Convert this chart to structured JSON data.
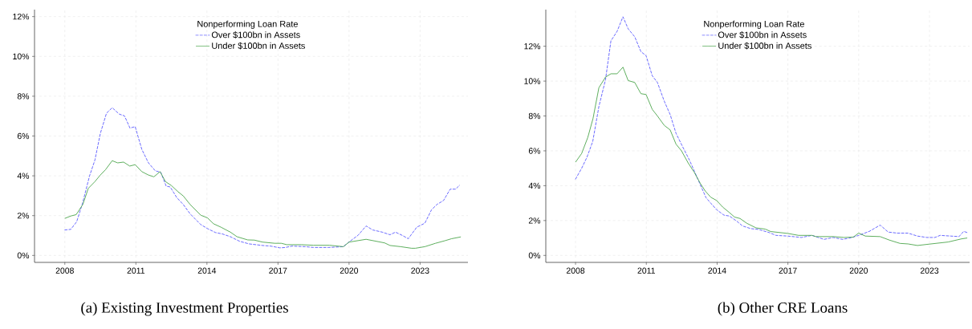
{
  "chart_data": [
    {
      "type": "line",
      "title": "(a) Existing Investment Properties",
      "legend_title": "Nonperforming Loan Rate",
      "legend": "top",
      "grid": true,
      "xlim": [
        2006.72,
        2025.02
      ],
      "ylim": [
        -0.35,
        12.35
      ],
      "xticks": [
        2008,
        2011,
        2014,
        2017,
        2020,
        2023
      ],
      "yticks": [
        {
          "value": 0,
          "label": "0%"
        },
        {
          "value": 2,
          "label": "2%"
        },
        {
          "value": 4,
          "label": "4%"
        },
        {
          "value": 6,
          "label": "6%"
        },
        {
          "value": 8,
          "label": "8%"
        },
        {
          "value": 10,
          "label": "10%"
        },
        {
          "value": 12,
          "label": "12%"
        }
      ],
      "series": [
        {
          "name": "Over $100bn in Assets",
          "color": "#5a5aff",
          "line_style": "dashed",
          "x": [
            2008,
            2008.25,
            2008.5,
            2008.75,
            2009.04,
            2009.27,
            2009.5,
            2009.76,
            2010.0,
            2010.3,
            2010.52,
            2010.75,
            2010.97,
            2011.25,
            2011.53,
            2011.82,
            2012.05,
            2012.28,
            2012.45,
            2012.73,
            2013.0,
            2013.29,
            2013.74,
            2014.02,
            2014.36,
            2014.65,
            2014.99,
            2015.38,
            2015.78,
            2016.35,
            2016.69,
            2017.08,
            2017.31,
            2017.6,
            2018.16,
            2018.5,
            2019.14,
            2019.76,
            2019.99,
            2020.38,
            2020.72,
            2021.0,
            2021.4,
            2021.73,
            2021.96,
            2022.24,
            2022.5,
            2022.86,
            2023.2,
            2023.48,
            2023.71,
            2023.99,
            2024.27,
            2024.5,
            2024.67
          ],
          "values": [
            1.28,
            1.31,
            1.69,
            2.63,
            3.98,
            4.79,
            6.13,
            7.15,
            7.42,
            7.1,
            7.01,
            6.4,
            6.47,
            5.33,
            4.65,
            4.25,
            4.18,
            3.48,
            3.44,
            2.9,
            2.56,
            2.09,
            1.55,
            1.35,
            1.15,
            1.08,
            0.94,
            0.71,
            0.58,
            0.5,
            0.47,
            0.38,
            0.4,
            0.47,
            0.44,
            0.4,
            0.4,
            0.44,
            0.67,
            1.01,
            1.48,
            1.28,
            1.17,
            1.04,
            1.17,
            1.01,
            0.84,
            1.42,
            1.62,
            2.29,
            2.56,
            2.76,
            3.33,
            3.33,
            3.53
          ]
        },
        {
          "name": "Under $100bn in Assets",
          "color": "#4ca64c",
          "line_style": "solid",
          "x": [
            2008,
            2008.25,
            2008.48,
            2008.76,
            2008.99,
            2009.27,
            2009.5,
            2009.72,
            2010.0,
            2010.23,
            2010.48,
            2010.74,
            2010.97,
            2011.25,
            2011.53,
            2011.76,
            2012.02,
            2012.25,
            2012.5,
            2012.78,
            2013.0,
            2013.29,
            2013.74,
            2014.02,
            2014.28,
            2014.59,
            2014.99,
            2015.27,
            2015.72,
            2016.0,
            2016.35,
            2016.86,
            2017.14,
            2017.37,
            2017.99,
            2018.5,
            2019.18,
            2019.76,
            2020.0,
            2020.72,
            2021.5,
            2021.73,
            2022.18,
            2022.64,
            2022.8,
            2023.2,
            2023.65,
            2024.05,
            2024.33,
            2024.72
          ],
          "values": [
            1.86,
            1.98,
            2.05,
            2.56,
            3.37,
            3.71,
            4.04,
            4.31,
            4.76,
            4.65,
            4.69,
            4.49,
            4.56,
            4.21,
            4.04,
            3.95,
            4.21,
            3.71,
            3.51,
            3.2,
            2.99,
            2.56,
            2.02,
            1.89,
            1.59,
            1.42,
            1.17,
            0.94,
            0.78,
            0.77,
            0.67,
            0.61,
            0.61,
            0.54,
            0.54,
            0.51,
            0.51,
            0.44,
            0.67,
            0.81,
            0.63,
            0.5,
            0.44,
            0.36,
            0.36,
            0.44,
            0.61,
            0.74,
            0.84,
            0.93
          ]
        }
      ]
    },
    {
      "type": "line",
      "title": "(b) Other CRE Loans",
      "legend_title": "Nonperforming Loan Rate",
      "legend": "top",
      "grid": true,
      "xlim": [
        2006.74,
        2024.7
      ],
      "ylim": [
        -0.4,
        14.1
      ],
      "xticks": [
        2008,
        2011,
        2014,
        2017,
        2020,
        2023
      ],
      "yticks": [
        {
          "value": 0,
          "label": "0%"
        },
        {
          "value": 2,
          "label": "2%"
        },
        {
          "value": 4,
          "label": "4%"
        },
        {
          "value": 6,
          "label": "6%"
        },
        {
          "value": 8,
          "label": "8%"
        },
        {
          "value": 10,
          "label": "10%"
        },
        {
          "value": 12,
          "label": "12%"
        }
      ],
      "series": [
        {
          "name": "Over $100bn in Assets",
          "color": "#5a5aff",
          "line_style": "dashed",
          "x": [
            2008,
            2008.26,
            2008.48,
            2008.73,
            2008.99,
            2009.27,
            2009.5,
            2009.76,
            2010.01,
            2010.23,
            2010.51,
            2010.77,
            2010.99,
            2011.25,
            2011.47,
            2011.76,
            2012.01,
            2012.26,
            2012.54,
            2012.83,
            2013.03,
            2013.28,
            2013.53,
            2013.73,
            2013.98,
            2014.29,
            2014.52,
            2014.8,
            2015.08,
            2015.42,
            2015.76,
            2016.21,
            2016.49,
            2017.0,
            2017.57,
            2018.02,
            2018.53,
            2018.92,
            2019.32,
            2019.72,
            2020.0,
            2020.45,
            2020.91,
            2021.25,
            2021.64,
            2022.09,
            2022.49,
            2022.89,
            2023.23,
            2023.45,
            2023.91,
            2024.25,
            2024.45,
            2024.6
          ],
          "values": [
            4.38,
            5.0,
            5.62,
            6.54,
            8.54,
            10.08,
            12.31,
            12.85,
            13.69,
            13.0,
            12.54,
            11.69,
            11.46,
            10.31,
            9.92,
            8.85,
            8.08,
            7.0,
            6.23,
            5.46,
            4.85,
            4.08,
            3.31,
            3.0,
            2.62,
            2.31,
            2.26,
            2.0,
            1.69,
            1.54,
            1.49,
            1.31,
            1.15,
            1.11,
            1.03,
            1.15,
            0.92,
            1.03,
            0.92,
            1.03,
            1.15,
            1.38,
            1.74,
            1.34,
            1.28,
            1.28,
            1.11,
            1.03,
            1.03,
            1.15,
            1.11,
            1.08,
            1.38,
            1.31
          ]
        },
        {
          "name": "Under $100bn in Assets",
          "color": "#4ca64c",
          "line_style": "solid",
          "x": [
            2008,
            2008.26,
            2008.52,
            2008.74,
            2008.99,
            2009.27,
            2009.5,
            2009.76,
            2010.01,
            2010.23,
            2010.51,
            2010.77,
            2010.99,
            2011.25,
            2011.47,
            2011.76,
            2012.01,
            2012.26,
            2012.49,
            2012.77,
            2013.03,
            2013.28,
            2013.5,
            2013.73,
            2013.98,
            2014.24,
            2014.52,
            2014.74,
            2014.97,
            2015.25,
            2015.65,
            2016.04,
            2016.27,
            2017.0,
            2017.45,
            2018.02,
            2018.19,
            2018.92,
            2019.38,
            2019.77,
            2020.0,
            2020.28,
            2020.91,
            2021.3,
            2021.75,
            2022.09,
            2022.49,
            2023.0,
            2023.79,
            2024.36,
            2024.6
          ],
          "values": [
            5.35,
            5.85,
            6.77,
            7.85,
            9.62,
            10.23,
            10.42,
            10.42,
            10.8,
            10.03,
            9.92,
            9.28,
            9.23,
            8.38,
            8.0,
            7.46,
            7.2,
            6.38,
            6.0,
            5.31,
            4.77,
            4.15,
            3.69,
            3.34,
            3.15,
            2.77,
            2.46,
            2.2,
            2.12,
            1.85,
            1.58,
            1.51,
            1.37,
            1.26,
            1.15,
            1.15,
            1.08,
            1.08,
            1.03,
            1.05,
            1.28,
            1.11,
            1.08,
            0.88,
            0.69,
            0.66,
            0.57,
            0.65,
            0.77,
            0.95,
            1.0
          ]
        }
      ]
    }
  ]
}
